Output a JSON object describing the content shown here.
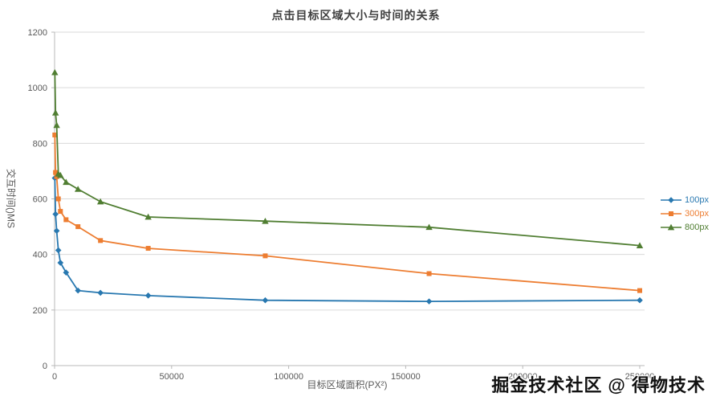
{
  "watermark": {
    "text": "掘金技术社区 @ 得物技术"
  },
  "chart_data": {
    "type": "line",
    "title": "点击目标区域大小与时间的关系",
    "xlabel": "目标区域面积(PX²)",
    "ylabel": "交互时间()MS",
    "xlim": [
      0,
      250000
    ],
    "ylim": [
      0,
      1200
    ],
    "xticks": [
      0,
      50000,
      100000,
      150000,
      200000,
      250000
    ],
    "yticks": [
      0,
      200,
      400,
      600,
      800,
      1000,
      1200
    ],
    "grid": "horizontal",
    "legend_position": "right",
    "x": [
      100,
      400,
      900,
      1600,
      2500,
      4900,
      10000,
      19600,
      40000,
      90000,
      160000,
      250000
    ],
    "series": [
      {
        "name": "100px",
        "color": "#2878b0",
        "marker": "diamond",
        "values": [
          675,
          545,
          485,
          415,
          370,
          335,
          270,
          262,
          252,
          235,
          231,
          235
        ]
      },
      {
        "name": "300px",
        "color": "#ed7d31",
        "marker": "square",
        "values": [
          830,
          695,
          680,
          600,
          555,
          525,
          500,
          450,
          422,
          395,
          331,
          270
        ]
      },
      {
        "name": "800px",
        "color": "#507e32",
        "marker": "triangle",
        "values": [
          1055,
          910,
          865,
          690,
          685,
          660,
          635,
          590,
          535,
          520,
          498,
          432
        ]
      }
    ],
    "colors": {
      "grid": "#dadada",
      "axis": "#b8b8b8",
      "tick_text": "#595959"
    }
  }
}
